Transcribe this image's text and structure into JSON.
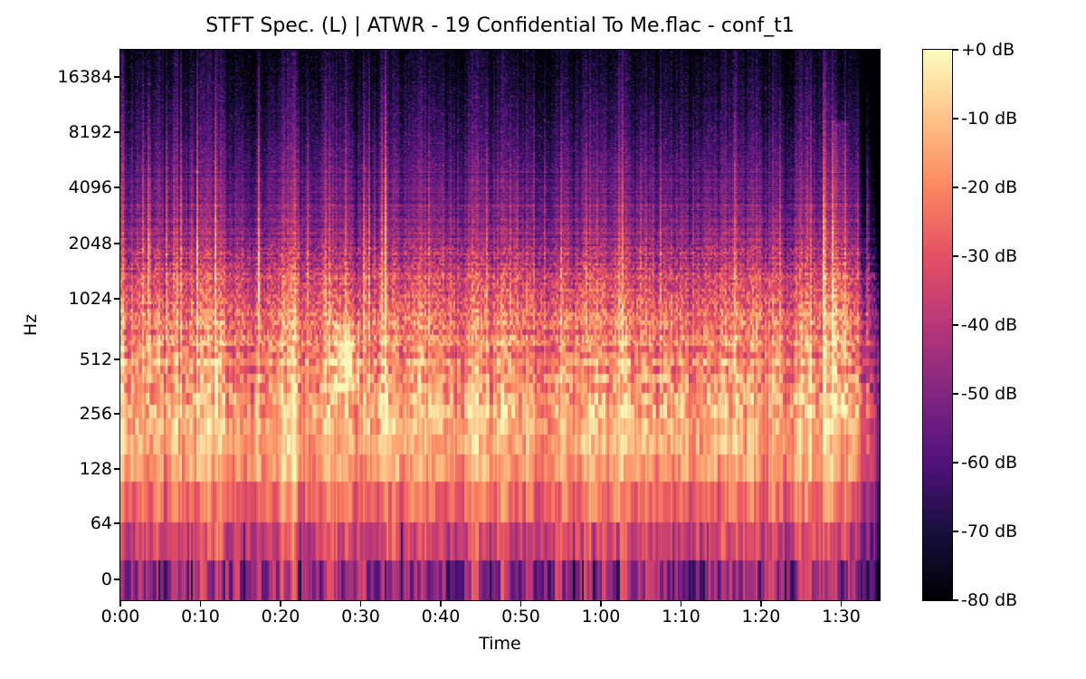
{
  "chart_data": {
    "type": "heatmap",
    "subtype": "stft_spectrogram",
    "title": "STFT Spec. (L) | ATWR - 19 Confidential To Me.flac - conf_t1",
    "xlabel": "Time",
    "ylabel": "Hz",
    "x_ticks": [
      {
        "label": "0:00",
        "s": 0
      },
      {
        "label": "0:10",
        "s": 10
      },
      {
        "label": "0:20",
        "s": 20
      },
      {
        "label": "0:30",
        "s": 30
      },
      {
        "label": "0:40",
        "s": 40
      },
      {
        "label": "0:50",
        "s": 50
      },
      {
        "label": "1:00",
        "s": 60
      },
      {
        "label": "1:10",
        "s": 70
      },
      {
        "label": "1:20",
        "s": 80
      },
      {
        "label": "1:30",
        "s": 90
      }
    ],
    "x_range_seconds": [
      0,
      94.8
    ],
    "y_tick_labels": [
      "16384",
      "8192",
      "4096",
      "2048",
      "1024",
      "512",
      "256",
      "128",
      "64",
      "0"
    ],
    "y_scale": "log2_with_zero",
    "y_range_hz": [
      0,
      22050
    ],
    "grid": false,
    "colormap": "magma",
    "colormap_stops": [
      {
        "t": 0.0,
        "hex": "#000004"
      },
      {
        "t": 0.125,
        "hex": "#180F3D"
      },
      {
        "t": 0.25,
        "hex": "#51127C"
      },
      {
        "t": 0.375,
        "hex": "#812581"
      },
      {
        "t": 0.5,
        "hex": "#B73779"
      },
      {
        "t": 0.625,
        "hex": "#E55064"
      },
      {
        "t": 0.75,
        "hex": "#FB8761"
      },
      {
        "t": 0.875,
        "hex": "#FEC287"
      },
      {
        "t": 1.0,
        "hex": "#FCFDBF"
      }
    ],
    "colorbar": {
      "tick_labels": [
        "+0 dB",
        "-10 dB",
        "-20 dB",
        "-30 dB",
        "-40 dB",
        "-50 dB",
        "-60 dB",
        "-70 dB",
        "-80 dB"
      ],
      "value_range_db": [
        -80,
        0
      ],
      "position": "right"
    },
    "band_profile_db": [
      {
        "hz": 0,
        "db": -45
      },
      {
        "hz": 43,
        "db": -33
      },
      {
        "hz": 86,
        "db": -24
      },
      {
        "hz": 129,
        "db": -16
      },
      {
        "hz": 172,
        "db": -13.5
      },
      {
        "hz": 258,
        "db": -13
      },
      {
        "hz": 516,
        "db": -20
      },
      {
        "hz": 1032,
        "db": -27
      },
      {
        "hz": 2064,
        "db": -45
      },
      {
        "hz": 4128,
        "db": -55
      },
      {
        "hz": 8256,
        "db": -65
      },
      {
        "hz": 16512,
        "db": -73
      },
      {
        "hz": 22050,
        "db": -76
      }
    ],
    "features": [
      {
        "label": "bright_tonal_blob",
        "time_s": 28,
        "hz_range": [
          390,
          600
        ],
        "peak_db": -5
      },
      {
        "label": "percussive_vertical_streaks",
        "hz_range": [
          200,
          18000
        ],
        "typical_db": -45
      },
      {
        "label": "ending_flourish",
        "time_s_range": [
          89,
          91
        ],
        "hz_range": [
          250,
          9500
        ]
      },
      {
        "label": "fade_out_tail",
        "time_s_range": [
          91.7,
          94.8
        ]
      }
    ]
  }
}
